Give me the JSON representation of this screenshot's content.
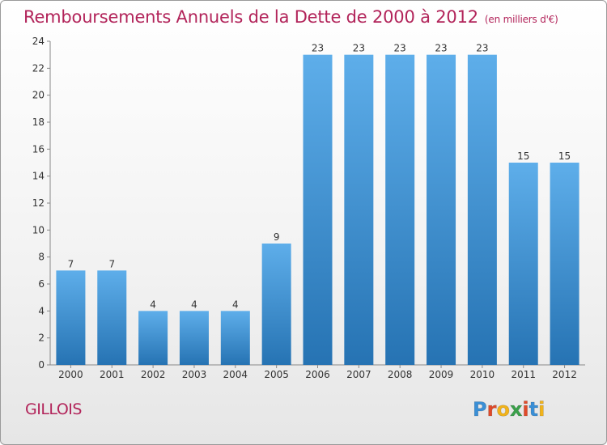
{
  "title": "Remboursements Annuels de la Dette de 2000 à 2012",
  "subtitle": "(en milliers d'€)",
  "commune": "GILLOIS",
  "logo": {
    "letters": [
      {
        "ch": "P",
        "color": "#3a8fd6"
      },
      {
        "ch": "r",
        "color": "#e04a2a"
      },
      {
        "ch": "o",
        "color": "#f2b31a"
      },
      {
        "ch": "x",
        "color": "#3aa04a"
      },
      {
        "ch": "i",
        "color": "#e04a2a"
      },
      {
        "ch": "t",
        "color": "#3a8fd6"
      },
      {
        "ch": "i",
        "color": "#f2b31a"
      }
    ]
  },
  "colors": {
    "bar_light": "#5eaeea",
    "bar_dark": "#2673b3",
    "title": "#b2245a"
  },
  "chart_data": {
    "type": "bar",
    "categories": [
      "2000",
      "2001",
      "2002",
      "2003",
      "2004",
      "2005",
      "2006",
      "2007",
      "2008",
      "2009",
      "2010",
      "2011",
      "2012"
    ],
    "values": [
      7,
      7,
      4,
      4,
      4,
      9,
      23,
      23,
      23,
      23,
      23,
      15,
      15
    ],
    "ylim": [
      0,
      24
    ],
    "yticks": [
      0,
      2,
      4,
      6,
      8,
      10,
      12,
      14,
      16,
      18,
      20,
      22,
      24
    ],
    "data_labels": true,
    "grid": false
  }
}
